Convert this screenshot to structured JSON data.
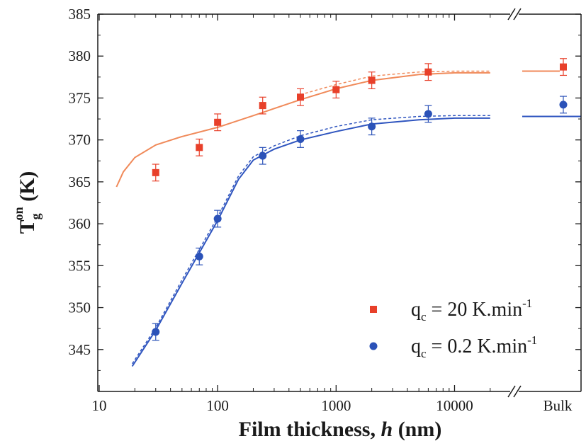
{
  "chart_data": {
    "type": "scatter",
    "xlabel": {
      "main": "Film thickness, ",
      "italic": "h",
      "unit": " (nm)"
    },
    "ylabel": {
      "main": "T",
      "sub": "g",
      "sup": "on",
      "unit": " (K)"
    },
    "xscale": "log",
    "xlim": [
      10,
      25000
    ],
    "ylim": [
      340,
      385
    ],
    "x_ticks": [
      "10",
      "100",
      "1000",
      "10000"
    ],
    "x_tick_values": [
      10,
      100,
      1000,
      10000
    ],
    "x_break_label": "Bulk",
    "y_ticks": [
      "345",
      "350",
      "355",
      "360",
      "365",
      "370",
      "375",
      "380",
      "385"
    ],
    "y_tick_values": [
      345,
      350,
      355,
      360,
      365,
      370,
      375,
      380,
      385
    ],
    "legend_position": "bottom-right",
    "series": [
      {
        "name": "q_c = 20 K.min^-1",
        "legend": {
          "q": "q",
          "sub": "c",
          "eq": " = 20 K.min",
          "sup": "-1"
        },
        "marker": "square",
        "color": "#e8402a",
        "line_color": "#f08a5a",
        "x": [
          30,
          70,
          100,
          240,
          500,
          1000,
          2000,
          6000
        ],
        "y": [
          366.1,
          369.1,
          372.1,
          374.1,
          375.1,
          376.0,
          377.1,
          378.1
        ],
        "err": [
          1.0,
          1.0,
          1.0,
          1.0,
          1.0,
          1.0,
          1.0,
          1.0
        ],
        "bulk": {
          "y": 378.7,
          "err": 1.0
        },
        "fit_solid": {
          "x": [
            14,
            16,
            20,
            30,
            50,
            100,
            200,
            500,
            1000,
            2000,
            5000,
            10000,
            20000
          ],
          "y": [
            364.4,
            366.2,
            367.9,
            369.4,
            370.4,
            371.5,
            372.9,
            374.8,
            376.1,
            377.1,
            377.8,
            378.0,
            378.0
          ]
        },
        "fit_dashed": {
          "x": [
            500,
            1000,
            2000,
            5000,
            10000,
            20000
          ],
          "y": [
            375.4,
            376.6,
            377.6,
            378.1,
            378.2,
            378.2
          ]
        },
        "bulk_line_y": 378.2
      },
      {
        "name": "q_c = 0.2 K.min^-1",
        "legend": {
          "q": "q",
          "sub": "c",
          "eq": " = 0.2 K.min",
          "sup": "-1"
        },
        "marker": "circle",
        "color": "#2b52b8",
        "line_color": "#2f55bf",
        "x": [
          30,
          70,
          100,
          240,
          500,
          2000,
          6000
        ],
        "y": [
          347.1,
          356.1,
          360.6,
          368.1,
          370.1,
          371.6,
          373.1
        ],
        "err": [
          1.0,
          1.0,
          1.0,
          1.0,
          1.0,
          1.0,
          1.0
        ],
        "bulk": {
          "y": 374.2,
          "err": 1.0
        },
        "fit_solid": {
          "x": [
            19,
            30,
            50,
            100,
            150,
            200,
            300,
            500,
            1000,
            2000,
            5000,
            10000,
            20000
          ],
          "y": [
            343.0,
            347.3,
            352.9,
            360.4,
            365.3,
            367.6,
            368.9,
            370.0,
            371.0,
            371.9,
            372.4,
            372.6,
            372.6
          ]
        },
        "fit_dashed": {
          "x": [
            19,
            30,
            50,
            100,
            150,
            200,
            300,
            500,
            1000,
            2000,
            5000,
            10000,
            20000
          ],
          "y": [
            343.3,
            347.6,
            353.3,
            360.8,
            365.7,
            368.0,
            369.3,
            370.5,
            371.6,
            372.4,
            372.8,
            372.9,
            372.9
          ]
        },
        "bulk_line_y": 372.8
      }
    ]
  }
}
